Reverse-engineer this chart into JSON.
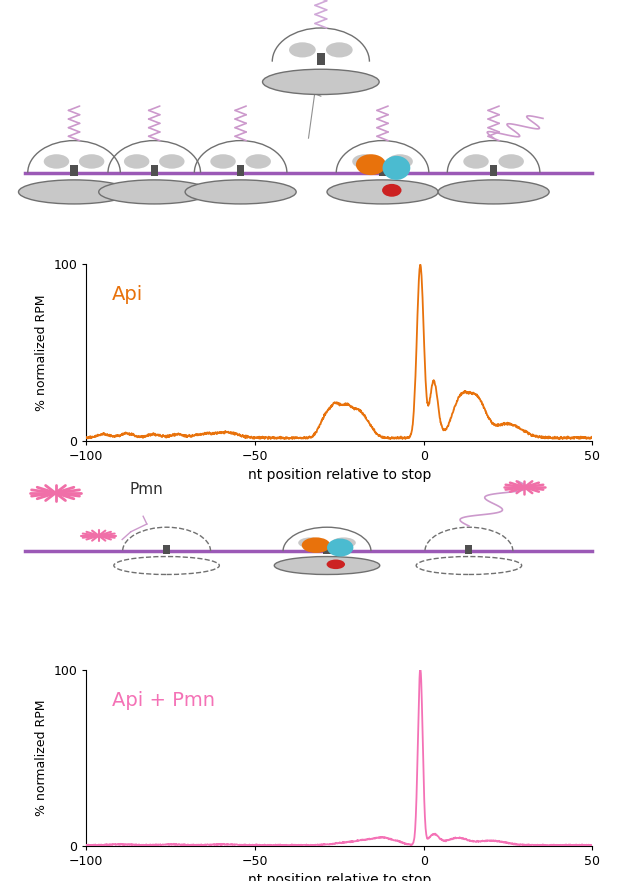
{
  "api_color": "#E8720C",
  "pmn_color": "#F472B6",
  "purple_color": "#9B59B6",
  "gray_ribo": "#C8C8C8",
  "dark_gray": "#707070",
  "chain_color": "#CC99CC",
  "xlabel": "nt position relative to stop",
  "ylabel": "% normalized RPM",
  "xmin": -100,
  "xmax": 50,
  "ymin": 0,
  "ymax": 100,
  "api_label": "Api",
  "pmn_label": "Api + Pmn",
  "bg_color": "#ffffff",
  "orange_peptide": "#E8720C",
  "blue_trna": "#4BBBD0",
  "red_dot": "#CC2222"
}
